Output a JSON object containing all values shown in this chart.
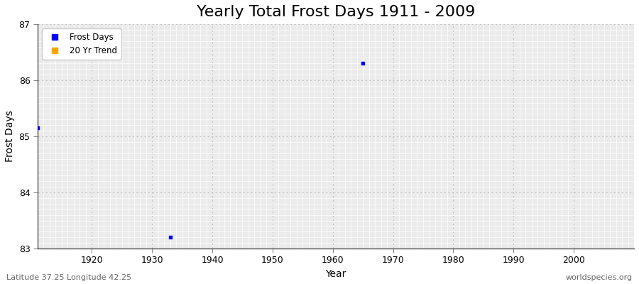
{
  "title": "Yearly Total Frost Days 1911 - 2009",
  "xlabel": "Year",
  "ylabel": "Frost Days",
  "xlim": [
    1911,
    2010
  ],
  "ylim": [
    83,
    87
  ],
  "yticks": [
    83,
    84,
    85,
    86,
    87
  ],
  "xticks": [
    1920,
    1930,
    1940,
    1950,
    1960,
    1970,
    1980,
    1990,
    2000
  ],
  "scatter_x": [
    1911,
    1933,
    1965
  ],
  "scatter_y": [
    85.15,
    83.2,
    86.3
  ],
  "scatter_color": "#0000ff",
  "fig_bg_color": "#ffffff",
  "plot_bg_color": "#ebebeb",
  "grid_major_color": "#cccccc",
  "grid_minor_color": "#d8d8d8",
  "legend_labels": [
    "Frost Days",
    "20 Yr Trend"
  ],
  "legend_colors": [
    "#0000ff",
    "#ffa500"
  ],
  "footer_left": "Latitude 37.25 Longitude 42.25",
  "footer_right": "worldspecies.org",
  "title_fontsize": 16,
  "axis_fontsize": 10,
  "tick_fontsize": 9,
  "footer_fontsize": 8
}
